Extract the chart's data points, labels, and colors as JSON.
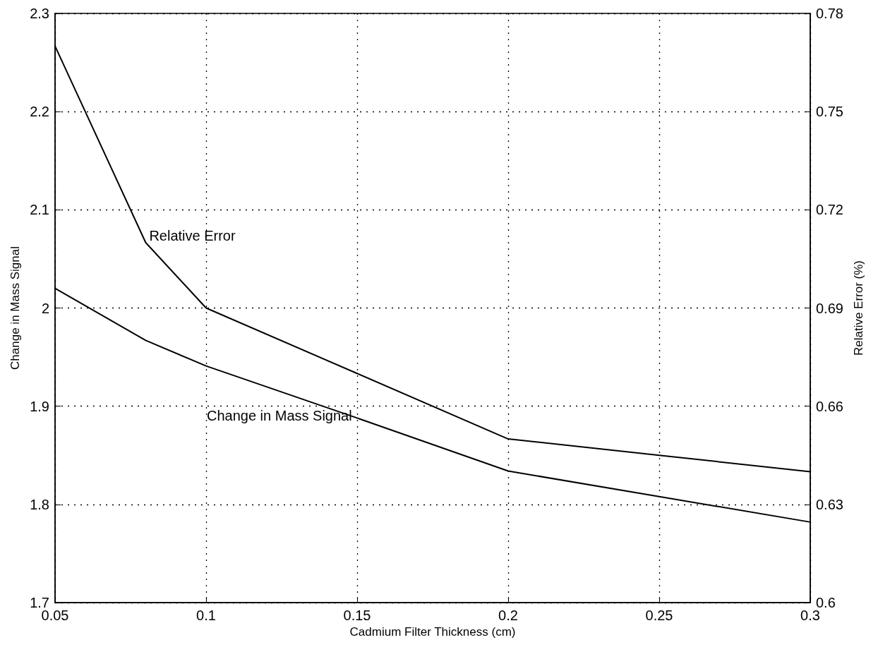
{
  "chart_data": {
    "type": "line",
    "xlabel": "Cadmium Filter Thickness (cm)",
    "ylabel": "Change in Mass Signal",
    "y2label": "Relative Error (%)",
    "x": [
      0.05,
      0.08,
      0.1,
      0.15,
      0.2,
      0.25,
      0.3
    ],
    "series": [
      {
        "name": "Change in Mass Signal",
        "color": "#000000",
        "values": [
          2.02,
          1.967,
          1.941,
          1.888,
          1.834,
          1.808,
          1.782
        ]
      },
      {
        "name": "Relative Error",
        "color": "#000000",
        "axis": "y2",
        "values": [
          0.77,
          0.71,
          0.69,
          0.67,
          0.65,
          0.645,
          0.64
        ]
      }
    ],
    "xlim": [
      0.05,
      0.3
    ],
    "xticks": [
      0.05,
      0.1,
      0.15,
      0.2,
      0.25,
      0.3
    ],
    "ylim": [
      1.7,
      2.3
    ],
    "yticks": [
      1.7,
      1.8,
      1.9,
      2,
      2.1,
      2.2,
      2.3
    ],
    "y2lim": [
      0.6,
      0.78
    ],
    "y2ticks": [
      0.6,
      0.63,
      0.66,
      0.69,
      0.72,
      0.75,
      0.78
    ],
    "grid": true,
    "marker": "none",
    "line_style": "solid"
  }
}
